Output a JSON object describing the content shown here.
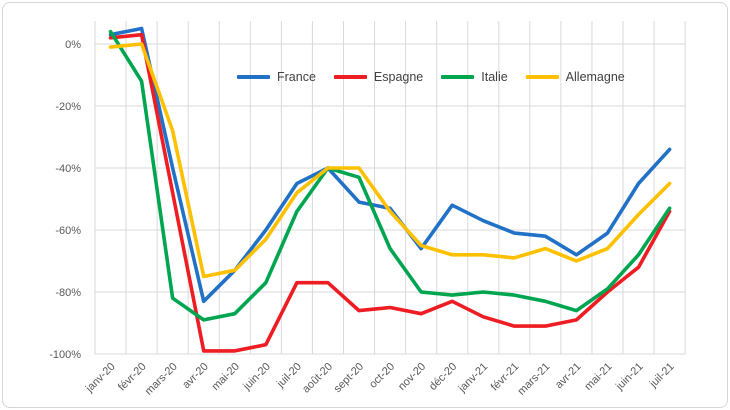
{
  "chart_data": {
    "type": "line",
    "title": "",
    "categories": [
      "janv-20",
      "févr-20",
      "mars-20",
      "avr-20",
      "mai-20",
      "juin-20",
      "juil-20",
      "août-20",
      "sept-20",
      "oct-20",
      "nov-20",
      "déc-20",
      "janv-21",
      "févr-21",
      "mars-21",
      "avr-21",
      "mai-21",
      "juin-21",
      "juil-21"
    ],
    "series": [
      {
        "name": "France",
        "color": "#2171C7",
        "values": [
          3,
          5,
          -40,
          -83,
          -73,
          -60,
          -45,
          -40,
          -51,
          -53,
          -66,
          -52,
          -57,
          -61,
          -62,
          -68,
          -61,
          -45,
          -34
        ]
      },
      {
        "name": "Espagne",
        "color": "#EE1D23",
        "values": [
          2,
          3,
          -48,
          -99,
          -99,
          -97,
          -77,
          -77,
          -86,
          -85,
          -87,
          -83,
          -88,
          -91,
          -91,
          -89,
          -80,
          -72,
          -54
        ]
      },
      {
        "name": "Italie",
        "color": "#00A550",
        "values": [
          4,
          -12,
          -82,
          -89,
          -87,
          -77,
          -54,
          -40,
          -43,
          -66,
          -80,
          -81,
          -80,
          -81,
          -83,
          -86,
          -79,
          -68,
          -53
        ]
      },
      {
        "name": "Allemagne",
        "color": "#FFC000",
        "values": [
          -1,
          0,
          -28,
          -75,
          -73,
          -63,
          -48,
          -40,
          -40,
          -54,
          -65,
          -68,
          -68,
          -69,
          -66,
          -70,
          -66,
          -55,
          -45
        ]
      }
    ],
    "y_ticks": [
      0,
      -20,
      -40,
      -60,
      -80,
      -100
    ],
    "y_tick_suffix": "%",
    "ylim": [
      -100,
      7
    ],
    "grid": true,
    "legend_position": "top-center",
    "axis_label_color": "#595959",
    "gridline_color": "#D9D9D9"
  },
  "legend": {
    "items": [
      "France",
      "Espagne",
      "Italie",
      "Allemagne"
    ]
  }
}
